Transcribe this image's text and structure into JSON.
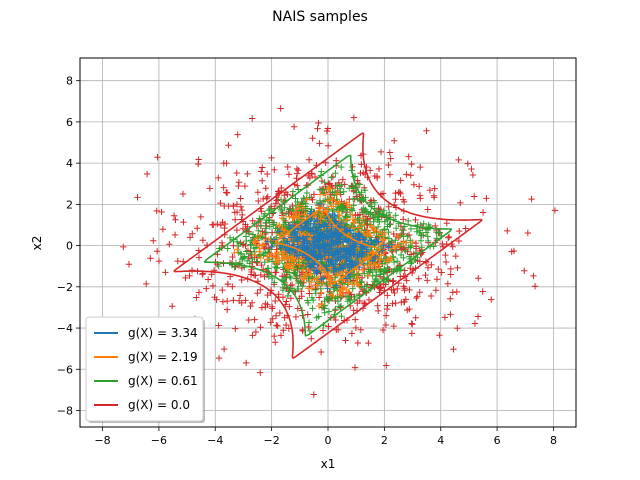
{
  "chart_data": {
    "type": "scatter",
    "title": "NAIS samples",
    "xlabel": "x1",
    "ylabel": "x2",
    "xlim": [
      -8.8,
      8.8
    ],
    "ylim": [
      -8.8,
      9.1
    ],
    "xticks": [
      -8,
      -6,
      -4,
      -2,
      0,
      2,
      4,
      6,
      8
    ],
    "yticks": [
      -8,
      -6,
      -4,
      -2,
      0,
      2,
      4,
      6,
      8
    ],
    "grid": true,
    "legend_position": "lower-left",
    "series": [
      {
        "name": "g(X) = 3.34",
        "level": 3.34,
        "color": "#1f77b4",
        "samples": 450,
        "center": [
          0,
          0
        ],
        "spread": [
          0.9,
          0.8
        ]
      },
      {
        "name": "g(X) = 2.19",
        "level": 2.19,
        "color": "#ff7f0e",
        "samples": 500,
        "center": [
          0,
          0
        ],
        "spread": [
          1.6,
          1.3
        ]
      },
      {
        "name": "g(X) = 0.61",
        "level": 0.61,
        "color": "#2ca02c",
        "samples": 900,
        "center": [
          0,
          0
        ],
        "spread": [
          2.0,
          1.7
        ]
      },
      {
        "name": "g(X) = 0.0",
        "level": 0.0,
        "color": "#d62728",
        "samples": 1000,
        "center": [
          0,
          0
        ],
        "spread": [
          2.5,
          2.2
        ]
      }
    ]
  }
}
